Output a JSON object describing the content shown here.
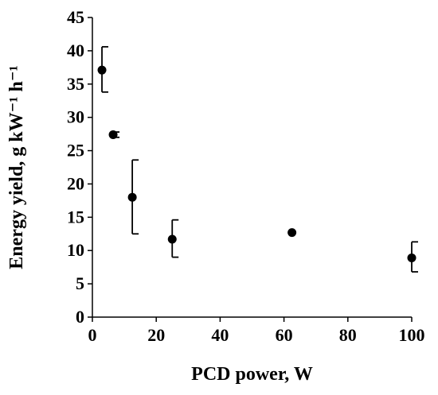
{
  "chart_data": {
    "type": "scatter",
    "title": "",
    "xlabel": "PCD power, W",
    "ylabel": "Energy yield, g kW⁻¹ h⁻¹",
    "xlim": [
      0,
      100
    ],
    "ylim": [
      0,
      45
    ],
    "xticks": [
      0,
      20,
      40,
      60,
      80,
      100
    ],
    "yticks": [
      0,
      5,
      10,
      15,
      20,
      25,
      30,
      35,
      40,
      45
    ],
    "grid": false,
    "series": [
      {
        "x": [
          3,
          6.5,
          12.5,
          25,
          62.5,
          100
        ],
        "y": [
          37.1,
          27.4,
          18.0,
          11.7,
          12.7,
          8.9
        ],
        "err_low": [
          3.3,
          0.4,
          5.5,
          2.7,
          0.0,
          2.1
        ],
        "err_high": [
          3.5,
          0.4,
          5.6,
          2.9,
          0.0,
          2.4
        ]
      }
    ]
  }
}
